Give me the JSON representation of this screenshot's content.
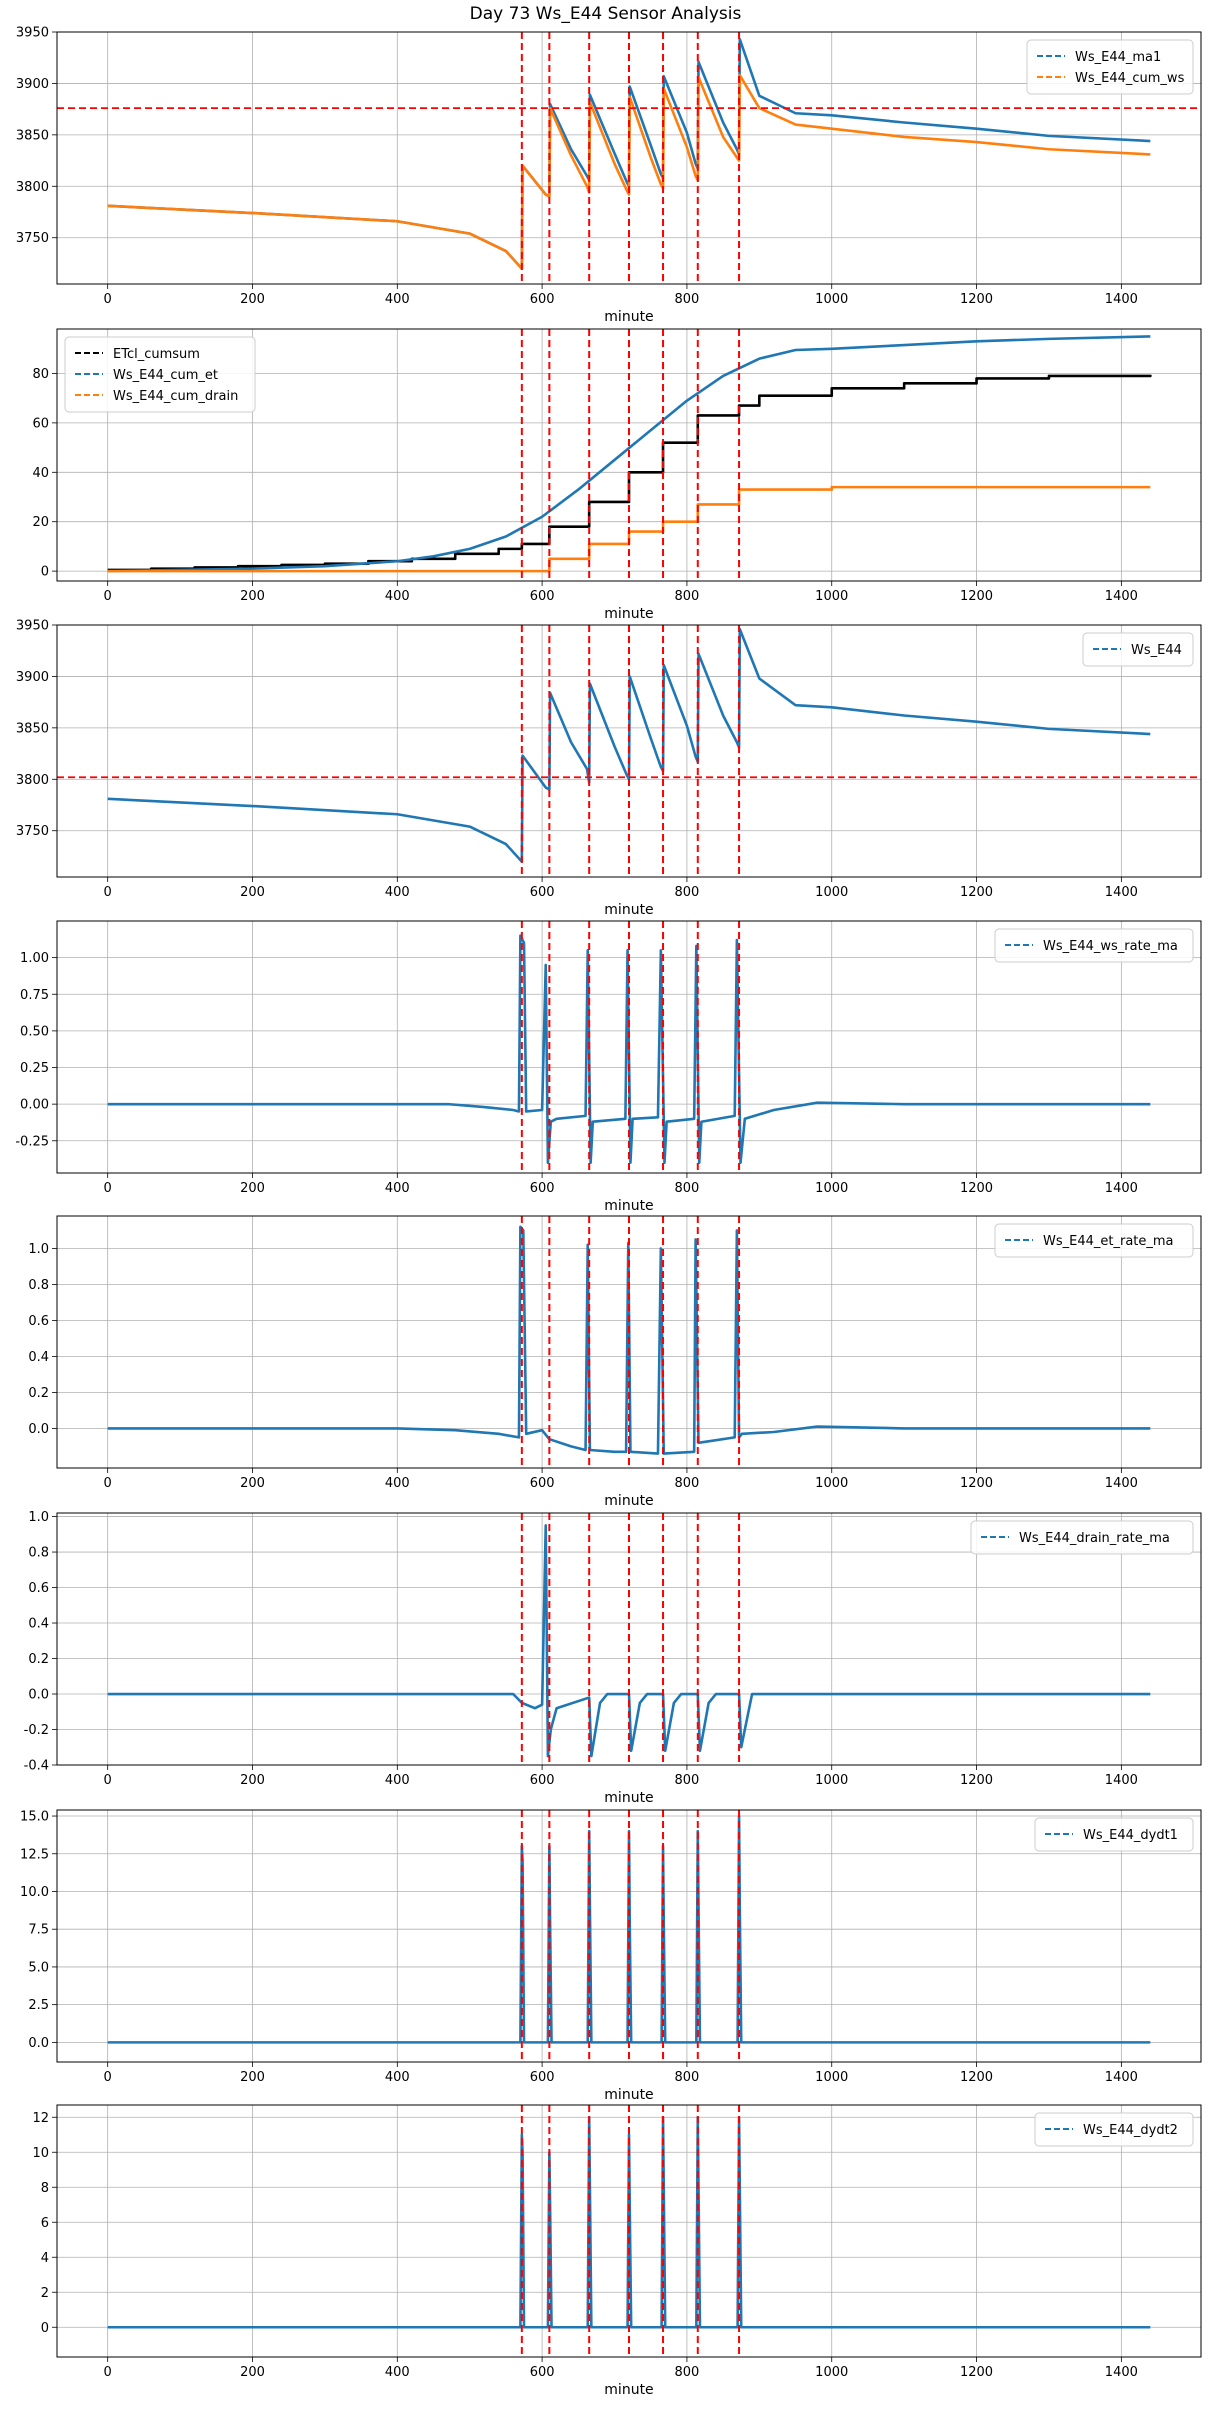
{
  "figure": {
    "title": "Day 73 Ws_E44 Sensor Analysis"
  },
  "colors": {
    "blue": "#1f77b4",
    "orange": "#ff7f0e",
    "black": "#000000",
    "red": "#ff0000",
    "grid": "#b0b0b0"
  },
  "event_lines": [
    572,
    610,
    665,
    720,
    767,
    815,
    872
  ],
  "chart_data": [
    {
      "type": "line",
      "title": "",
      "xlabel": "minute",
      "xlim": [
        -70,
        1510
      ],
      "ylim": [
        3705,
        3950
      ],
      "xticks": [
        0,
        200,
        400,
        600,
        800,
        1000,
        1200,
        1400
      ],
      "yticks": [
        3750,
        3800,
        3850,
        3900,
        3950
      ],
      "ytick_labels": [
        "3750",
        "3800",
        "3850",
        "3900",
        "3950"
      ],
      "legend_position": "top-right",
      "hline": 3876,
      "series": [
        {
          "name": "Ws_E44_ma1",
          "color": "blue",
          "x": [
            0,
            200,
            400,
            500,
            550,
            572,
            573,
            605,
            610,
            611,
            640,
            662,
            665,
            666,
            700,
            717,
            720,
            721,
            750,
            764,
            767,
            768,
            800,
            812,
            815,
            816,
            850,
            869,
            872,
            873,
            900,
            950,
            1000,
            1100,
            1200,
            1300,
            1440
          ],
          "y": [
            3781,
            3774,
            3766,
            3754,
            3737,
            3720,
            3820,
            3792,
            3790,
            3880,
            3836,
            3810,
            3806,
            3889,
            3832,
            3804,
            3800,
            3897,
            3840,
            3812,
            3808,
            3907,
            3852,
            3822,
            3817,
            3921,
            3862,
            3836,
            3831,
            3943,
            3888,
            3871,
            3869,
            3862,
            3856,
            3849,
            3844
          ]
        },
        {
          "name": "Ws_E44_cum_ws",
          "color": "orange",
          "x": [
            0,
            200,
            400,
            500,
            550,
            572,
            573,
            605,
            610,
            611,
            640,
            662,
            665,
            666,
            700,
            717,
            720,
            721,
            750,
            764,
            767,
            768,
            800,
            812,
            815,
            816,
            850,
            869,
            872,
            873,
            900,
            950,
            1000,
            1100,
            1200,
            1300,
            1440
          ],
          "y": [
            3781,
            3774,
            3766,
            3754,
            3737,
            3720,
            3820,
            3792,
            3790,
            3876,
            3830,
            3800,
            3794,
            3882,
            3822,
            3796,
            3792,
            3887,
            3828,
            3802,
            3798,
            3895,
            3838,
            3810,
            3806,
            3906,
            3848,
            3828,
            3825,
            3908,
            3876,
            3860,
            3856,
            3848,
            3843,
            3836,
            3831
          ]
        }
      ]
    },
    {
      "type": "line",
      "title": "",
      "xlabel": "minute",
      "xlim": [
        -70,
        1510
      ],
      "ylim": [
        -4,
        98
      ],
      "xticks": [
        0,
        200,
        400,
        600,
        800,
        1000,
        1200,
        1400
      ],
      "yticks": [
        0,
        20,
        40,
        60,
        80
      ],
      "ytick_labels": [
        "0",
        "20",
        "40",
        "60",
        "80"
      ],
      "legend_position": "top-left",
      "series": [
        {
          "name": "ETcl_cumsum",
          "color": "black",
          "step": true,
          "x": [
            0,
            60,
            120,
            180,
            240,
            300,
            360,
            420,
            480,
            540,
            572,
            610,
            665,
            720,
            767,
            815,
            872,
            900,
            1000,
            1100,
            1200,
            1300,
            1440
          ],
          "y": [
            0.5,
            1,
            1.5,
            2,
            2.5,
            3,
            4,
            5,
            7,
            9,
            11,
            18,
            28,
            40,
            52,
            63,
            67,
            71,
            74,
            76,
            78,
            79,
            79.5
          ]
        },
        {
          "name": "Ws_E44_cum_et",
          "color": "blue",
          "x": [
            0,
            200,
            300,
            400,
            450,
            500,
            550,
            600,
            650,
            700,
            750,
            800,
            850,
            900,
            950,
            1000,
            1100,
            1200,
            1300,
            1440
          ],
          "y": [
            0,
            1,
            2,
            4,
            6,
            9,
            14,
            22,
            33,
            45,
            57,
            69,
            79,
            86,
            89.5,
            90,
            91.5,
            93,
            94,
            95
          ]
        },
        {
          "name": "Ws_E44_cum_drain",
          "color": "orange",
          "step": true,
          "x": [
            0,
            605,
            610,
            665,
            720,
            767,
            815,
            872,
            1000,
            1440
          ],
          "y": [
            0,
            0,
            5,
            11,
            16,
            20,
            27,
            33,
            34,
            34
          ]
        }
      ]
    },
    {
      "type": "line",
      "title": "",
      "xlabel": "minute",
      "xlim": [
        -70,
        1510
      ],
      "ylim": [
        3705,
        3950
      ],
      "xticks": [
        0,
        200,
        400,
        600,
        800,
        1000,
        1200,
        1400
      ],
      "yticks": [
        3750,
        3800,
        3850,
        3900,
        3950
      ],
      "ytick_labels": [
        "3750",
        "3800",
        "3850",
        "3900",
        "3950"
      ],
      "legend_position": "top-right",
      "hline": 3802,
      "series": [
        {
          "name": "Ws_E44",
          "color": "blue",
          "x": [
            0,
            200,
            400,
            500,
            550,
            572,
            573,
            605,
            610,
            611,
            640,
            662,
            665,
            666,
            700,
            717,
            720,
            721,
            750,
            764,
            767,
            768,
            800,
            812,
            815,
            816,
            850,
            869,
            872,
            873,
            900,
            950,
            1000,
            1100,
            1200,
            1300,
            1440
          ],
          "y": [
            3781,
            3774,
            3766,
            3754,
            3737,
            3720,
            3823,
            3792,
            3790,
            3884,
            3836,
            3810,
            3797,
            3893,
            3832,
            3804,
            3800,
            3900,
            3840,
            3812,
            3808,
            3911,
            3852,
            3822,
            3817,
            3922,
            3862,
            3836,
            3831,
            3946,
            3898,
            3872,
            3870,
            3862,
            3856,
            3849,
            3844
          ]
        }
      ]
    },
    {
      "type": "line",
      "title": "",
      "xlabel": "minute",
      "xlim": [
        -70,
        1510
      ],
      "ylim": [
        -0.47,
        1.25
      ],
      "xticks": [
        0,
        200,
        400,
        600,
        800,
        1000,
        1200,
        1400
      ],
      "yticks": [
        -0.25,
        0.0,
        0.25,
        0.5,
        0.75,
        1.0
      ],
      "ytick_labels": [
        "-0.25",
        "0.00",
        "0.25",
        "0.50",
        "0.75",
        "1.00"
      ],
      "legend_position": "top-right",
      "series": [
        {
          "name": "Ws_E44_ws_rate_ma",
          "color": "blue",
          "x": [
            0,
            200,
            400,
            470,
            520,
            560,
            568,
            570,
            575,
            578,
            600,
            605,
            608,
            612,
            620,
            660,
            663,
            667,
            670,
            715,
            718,
            722,
            725,
            760,
            764,
            769,
            772,
            810,
            813,
            817,
            820,
            866,
            869,
            874,
            880,
            920,
            980,
            1100,
            1440
          ],
          "y": [
            0,
            0,
            0,
            0,
            -0.02,
            -0.04,
            -0.05,
            1.15,
            1.1,
            -0.05,
            -0.04,
            0.95,
            -0.4,
            -0.12,
            -0.1,
            -0.08,
            1.05,
            -0.4,
            -0.12,
            -0.1,
            1.05,
            -0.4,
            -0.1,
            -0.09,
            1.05,
            -0.4,
            -0.12,
            -0.1,
            1.08,
            -0.4,
            -0.12,
            -0.08,
            1.12,
            -0.4,
            -0.1,
            -0.04,
            0.01,
            0,
            0
          ]
        }
      ]
    },
    {
      "type": "line",
      "title": "",
      "xlabel": "minute",
      "xlim": [
        -70,
        1510
      ],
      "ylim": [
        -0.22,
        1.18
      ],
      "xticks": [
        0,
        200,
        400,
        600,
        800,
        1000,
        1200,
        1400
      ],
      "yticks": [
        0.0,
        0.2,
        0.4,
        0.6,
        0.8,
        1.0
      ],
      "ytick_labels": [
        "0.0",
        "0.2",
        "0.4",
        "0.6",
        "0.8",
        "1.0"
      ],
      "legend_position": "top-right",
      "series": [
        {
          "name": "Ws_E44_et_rate_ma",
          "color": "blue",
          "x": [
            0,
            200,
            400,
            480,
            540,
            568,
            570,
            574,
            578,
            600,
            610,
            640,
            660,
            663,
            666,
            700,
            716,
            719,
            722,
            760,
            764,
            768,
            810,
            812,
            816,
            866,
            869,
            872,
            876,
            920,
            980,
            1100,
            1440
          ],
          "y": [
            0,
            0,
            0,
            -0.01,
            -0.03,
            -0.05,
            1.12,
            1.1,
            -0.03,
            -0.01,
            -0.06,
            -0.1,
            -0.12,
            1.02,
            -0.12,
            -0.13,
            -0.13,
            1.03,
            -0.13,
            -0.14,
            1.0,
            -0.14,
            -0.13,
            1.05,
            -0.08,
            -0.05,
            1.1,
            -0.05,
            -0.03,
            -0.02,
            0.01,
            0,
            0
          ]
        }
      ]
    },
    {
      "type": "line",
      "title": "",
      "xlabel": "minute",
      "xlim": [
        -70,
        1510
      ],
      "ylim": [
        -0.4,
        1.02
      ],
      "xticks": [
        0,
        200,
        400,
        600,
        800,
        1000,
        1200,
        1400
      ],
      "yticks": [
        -0.4,
        -0.2,
        0.0,
        0.2,
        0.4,
        0.6,
        0.8,
        1.0
      ],
      "ytick_labels": [
        "-0.4",
        "-0.2",
        "0.0",
        "0.2",
        "0.4",
        "0.6",
        "0.8",
        "1.0"
      ],
      "legend_position": "top-right",
      "series": [
        {
          "name": "Ws_E44_drain_rate_ma",
          "color": "blue",
          "x": [
            0,
            560,
            572,
            590,
            600,
            605,
            608,
            612,
            620,
            665,
            668,
            680,
            690,
            720,
            723,
            735,
            745,
            767,
            770,
            782,
            792,
            815,
            818,
            830,
            840,
            872,
            875,
            890,
            1440
          ],
          "y": [
            0,
            0,
            -0.05,
            -0.08,
            -0.06,
            0.95,
            -0.35,
            -0.2,
            -0.08,
            -0.02,
            -0.35,
            -0.05,
            0,
            0,
            -0.32,
            -0.05,
            0,
            0,
            -0.32,
            -0.05,
            0,
            0,
            -0.32,
            -0.05,
            0,
            0,
            -0.3,
            0,
            0
          ]
        }
      ]
    },
    {
      "type": "line",
      "title": "",
      "xlabel": "minute",
      "xlim": [
        -70,
        1510
      ],
      "ylim": [
        -1.3,
        15.4
      ],
      "xticks": [
        0,
        200,
        400,
        600,
        800,
        1000,
        1200,
        1400
      ],
      "yticks": [
        0.0,
        2.5,
        5.0,
        7.5,
        10.0,
        12.5,
        15.0
      ],
      "ytick_labels": [
        "0.0",
        "2.5",
        "5.0",
        "7.5",
        "10.0",
        "12.5",
        "15.0"
      ],
      "legend_position": "top-right",
      "series": [
        {
          "name": "Ws_E44_dydt1",
          "color": "blue",
          "x": [
            0,
            570,
            572,
            573,
            575,
            608,
            610,
            611,
            613,
            663,
            665,
            666,
            668,
            718,
            720,
            721,
            723,
            765,
            767,
            768,
            770,
            813,
            815,
            816,
            818,
            870,
            872,
            873,
            875,
            1440
          ],
          "y": [
            0,
            0,
            13,
            12,
            0,
            0,
            13,
            8,
            0,
            0,
            14,
            9,
            0,
            0,
            14,
            8,
            0,
            0,
            13,
            8,
            0,
            0,
            14,
            9,
            0,
            0,
            15,
            9,
            0,
            0
          ]
        }
      ]
    },
    {
      "type": "line",
      "title": "",
      "xlabel": "minute",
      "xlim": [
        -70,
        1510
      ],
      "ylim": [
        -1.7,
        12.7
      ],
      "xticks": [
        0,
        200,
        400,
        600,
        800,
        1000,
        1200,
        1400
      ],
      "yticks": [
        0,
        2,
        4,
        6,
        8,
        10,
        12
      ],
      "ytick_labels": [
        "0",
        "2",
        "4",
        "6",
        "8",
        "10",
        "12"
      ],
      "legend_position": "top-right",
      "series": [
        {
          "name": "Ws_E44_dydt2",
          "color": "blue",
          "x": [
            0,
            570,
            572,
            573,
            575,
            608,
            610,
            611,
            613,
            663,
            665,
            666,
            668,
            718,
            720,
            721,
            723,
            765,
            767,
            768,
            770,
            813,
            815,
            816,
            818,
            870,
            872,
            873,
            875,
            1440
          ],
          "y": [
            0,
            0,
            11,
            10,
            0,
            0,
            10,
            7,
            0,
            0,
            12,
            8,
            0,
            0,
            11,
            7,
            0,
            0,
            12,
            8,
            0,
            0,
            12,
            8,
            0,
            0,
            12,
            8,
            0,
            0
          ]
        }
      ]
    }
  ]
}
